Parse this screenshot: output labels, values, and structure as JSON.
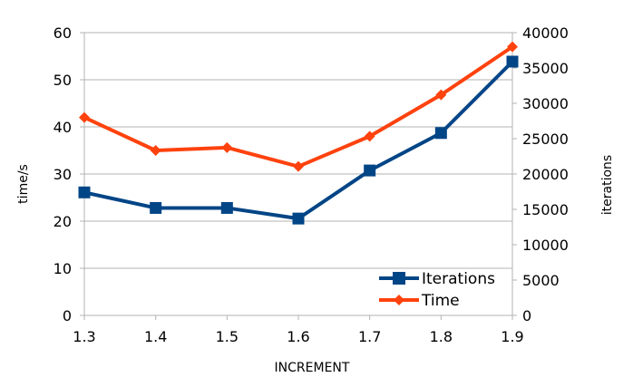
{
  "chart_data": {
    "type": "line",
    "title": "",
    "xlabel": "INCREMENT",
    "ylabel_left": "time/s",
    "ylabel_right": "iterations",
    "categories": [
      "1.3",
      "1.4",
      "1.5",
      "1.6",
      "1.7",
      "1.8",
      "1.9"
    ],
    "x_tick_labels": [
      "1.3",
      "1.4",
      "1.5",
      "1.6",
      "1.7",
      "1.8",
      "1.9"
    ],
    "y_left_ticks": [
      "0",
      "10",
      "20",
      "30",
      "40",
      "50",
      "60"
    ],
    "y_left_range": [
      0,
      60
    ],
    "y_right_ticks": [
      "0",
      "5000",
      "10000",
      "15000",
      "20000",
      "25000",
      "30000",
      "35000",
      "40000"
    ],
    "y_right_range": [
      0,
      40000
    ],
    "grid": "horizontal",
    "legend_position": "bottom-right",
    "series": [
      {
        "name": "Iterations",
        "axis": "right",
        "marker": "square",
        "color": "#004586",
        "values": [
          17400,
          15200,
          15200,
          13700,
          20500,
          25800,
          35900
        ]
      },
      {
        "name": "Time",
        "axis": "left",
        "marker": "diamond",
        "color": "#ff420e",
        "values": [
          42,
          35,
          35.6,
          31.6,
          38,
          46.8,
          57
        ]
      }
    ]
  }
}
